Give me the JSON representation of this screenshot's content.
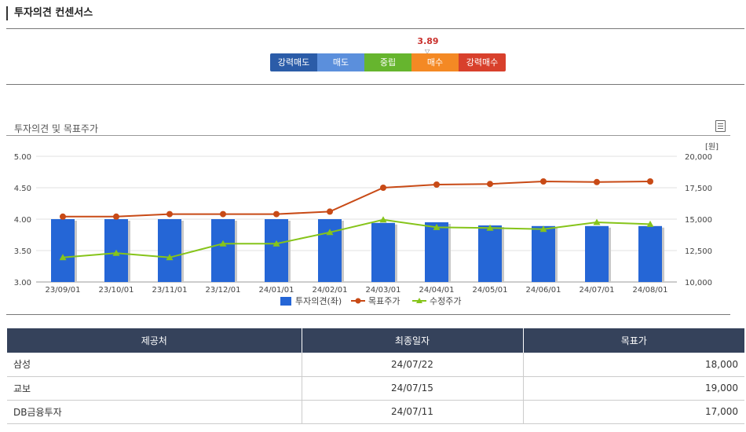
{
  "header": {
    "title": "투자의견 컨센서스"
  },
  "consensus": {
    "value": "3.89",
    "segments": [
      "강력매도",
      "매도",
      "중립",
      "매수",
      "강력매수"
    ]
  },
  "chart_section": {
    "title": "투자의견 및 목표주가"
  },
  "chart_data": {
    "type": "bar",
    "categories": [
      "23/09/01",
      "23/10/01",
      "23/11/01",
      "23/12/01",
      "24/01/01",
      "24/02/01",
      "24/03/01",
      "24/04/01",
      "24/05/01",
      "24/06/01",
      "24/07/01",
      "24/08/01"
    ],
    "left_axis": {
      "min": 3.0,
      "max": 5.0,
      "ticks": [
        "5.00",
        "4.50",
        "4.00",
        "3.50",
        "3.00"
      ]
    },
    "right_axis": {
      "min": 10000,
      "max": 20000,
      "unit": "[원]",
      "ticks": [
        "20,000",
        "17,500",
        "15,000",
        "12,500",
        "10,000"
      ]
    },
    "series": [
      {
        "name": "투자의견(좌)",
        "type": "bar",
        "axis": "left",
        "color": "#2566d6",
        "values": [
          4.0,
          4.0,
          4.0,
          4.0,
          4.0,
          4.0,
          3.94,
          3.95,
          3.9,
          3.89,
          3.89,
          3.89
        ]
      },
      {
        "name": "목표주가",
        "type": "line",
        "axis": "right",
        "color": "#c84a16",
        "marker": "circle",
        "values": [
          15200,
          15200,
          15400,
          15400,
          15400,
          15600,
          17500,
          17750,
          17800,
          18000,
          17950,
          18000
        ]
      },
      {
        "name": "수정주가",
        "type": "line",
        "axis": "right",
        "color": "#86c41a",
        "marker": "triangle",
        "values": [
          11950,
          12300,
          11950,
          13050,
          13050,
          13950,
          14950,
          14350,
          14300,
          14200,
          14750,
          14600
        ]
      }
    ]
  },
  "table": {
    "headers": [
      "제공처",
      "최종일자",
      "목표가"
    ],
    "rows": [
      {
        "provider": "삼성",
        "date": "24/07/22",
        "target": "18,000"
      },
      {
        "provider": "교보",
        "date": "24/07/15",
        "target": "19,000"
      },
      {
        "provider": "DB금융투자",
        "date": "24/07/11",
        "target": "17,000"
      }
    ]
  }
}
